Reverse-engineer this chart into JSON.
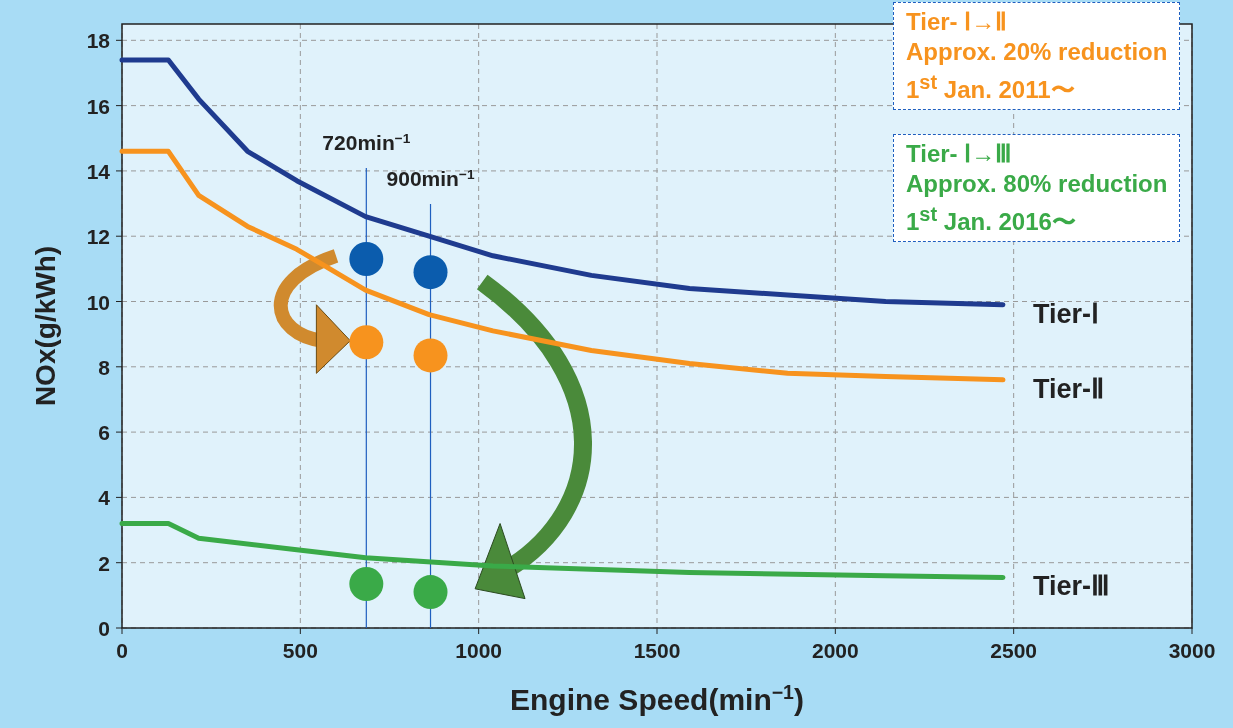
{
  "chart_data": {
    "type": "line",
    "xlabel": "Engine Speed(min$^{−1}$)",
    "ylabel": "NOx(g/kWh)",
    "xlim": [
      0,
      3000
    ],
    "ylim": [
      0,
      18.5
    ],
    "xticks": [
      0,
      500,
      1000,
      1500,
      2000,
      2500,
      3000
    ],
    "yticks": [
      0,
      2,
      4,
      6,
      8,
      10,
      12,
      14,
      16,
      18
    ],
    "grid": true,
    "series": [
      {
        "name": "Tier-Ⅰ",
        "color": "#1f3b8f",
        "x": [
          0,
          130,
          215,
          352,
          490,
          683,
          861,
          1040,
          1316,
          1591,
          1866,
          2141,
          2470
        ],
        "values": [
          17.4,
          17.4,
          16.2,
          14.6,
          13.7,
          12.6,
          12.0,
          11.4,
          10.8,
          10.4,
          10.2,
          10.0,
          9.9
        ]
      },
      {
        "name": "Tier-Ⅱ",
        "color": "#f7931e",
        "x": [
          0,
          130,
          215,
          352,
          490,
          683,
          861,
          1040,
          1316,
          1591,
          1866,
          2141,
          2470
        ],
        "values": [
          14.6,
          14.6,
          13.25,
          12.3,
          11.6,
          10.35,
          9.6,
          9.1,
          8.5,
          8.1,
          7.8,
          7.7,
          7.6
        ]
      },
      {
        "name": "Tier-Ⅲ",
        "color": "#3aaa48",
        "x": [
          0,
          130,
          215,
          490,
          683,
          1040,
          1591,
          2141,
          2470
        ],
        "values": [
          3.2,
          3.2,
          2.75,
          2.4,
          2.15,
          1.9,
          1.7,
          1.6,
          1.55
        ]
      },
      {
        "type": "scatter",
        "color": "#0b5cad",
        "x": [
          685,
          865
        ],
        "values": [
          11.3,
          10.9
        ]
      },
      {
        "type": "scatter",
        "color": "#f7931e",
        "x": [
          685,
          865
        ],
        "values": [
          8.75,
          8.35
        ]
      },
      {
        "type": "scatter",
        "color": "#3aaa48",
        "x": [
          685,
          865
        ],
        "values": [
          1.35,
          1.1
        ]
      }
    ],
    "ref_lines": [
      {
        "axis": "x",
        "value": 685,
        "label": "720min$^{−1}$",
        "color": "#1f5fbf"
      },
      {
        "axis": "x",
        "value": 865,
        "label": "900min$^{−1}$",
        "color": "#1f5fbf"
      }
    ],
    "annotations": [
      "Tier- Ⅰ→Ⅱ\nApprox. 20% reduction\n1$^{st}$ Jan. 2011〜",
      "Tier- Ⅰ→Ⅲ\nApprox. 80% reduction\n1$^{st}$ Jan. 2016〜"
    ]
  }
}
